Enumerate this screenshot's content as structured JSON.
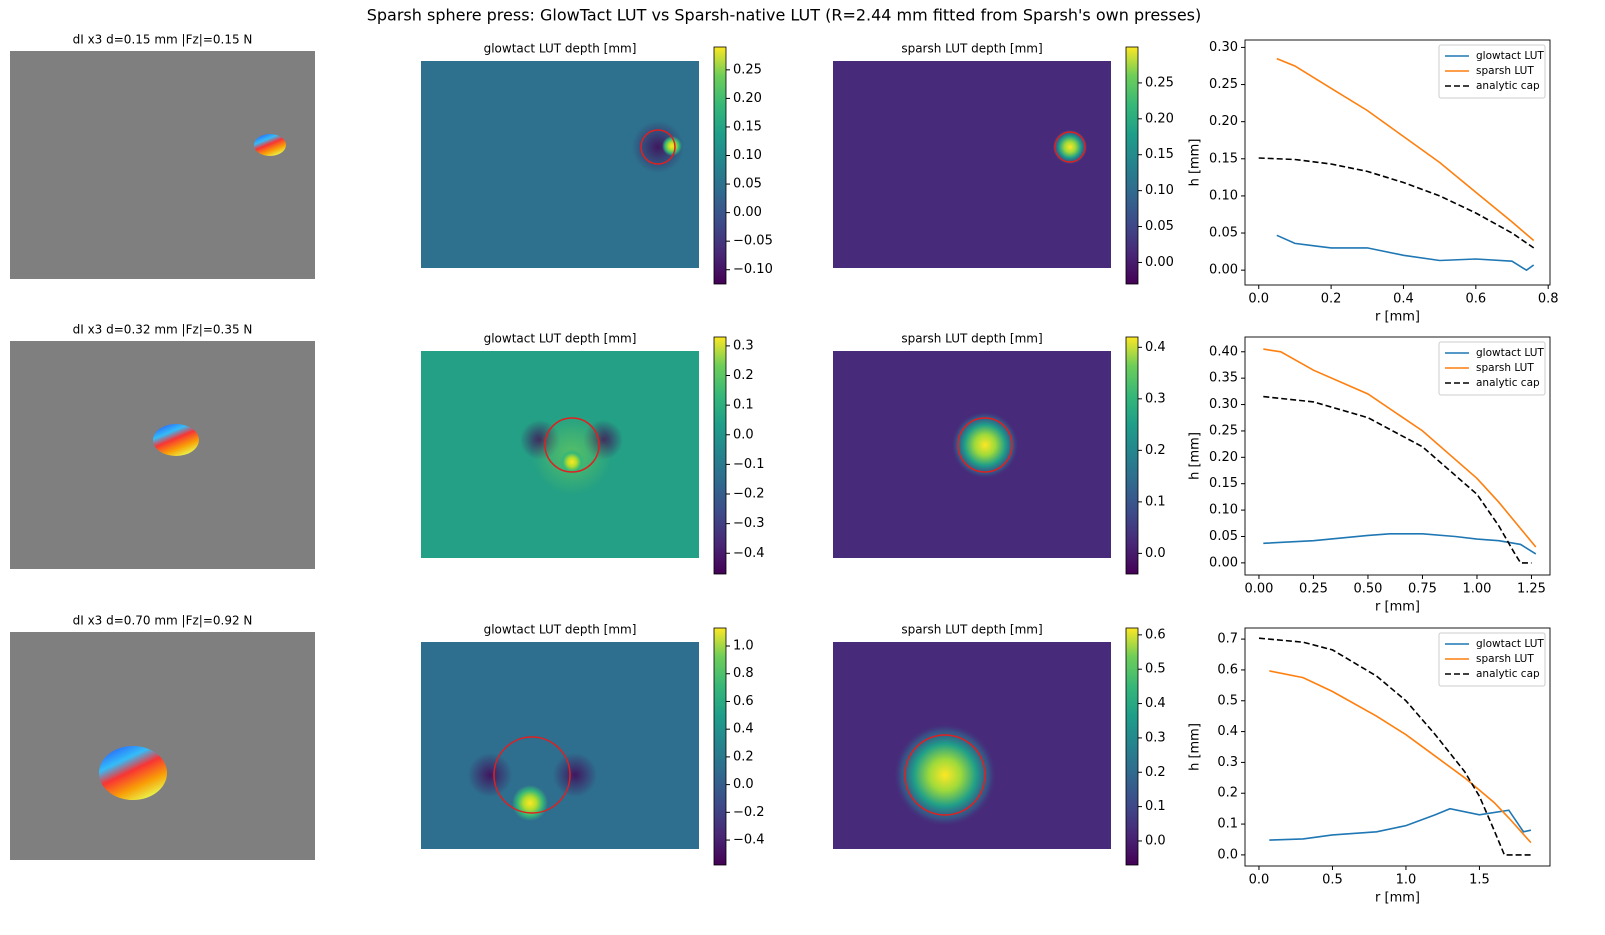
{
  "title": "Sparsh sphere press: GlowTact LUT vs Sparsh-native LUT (R=2.44 mm fitted from Sparsh's own presses)",
  "chart_data": [
    {
      "type": "image",
      "title": "dI x3   d=0.15 mm  |Fz|=0.15 N"
    },
    {
      "type": "heatmap",
      "title": "glowtact LUT depth [mm]",
      "colormap": "viridis",
      "clim": [
        -0.125,
        0.29
      ],
      "cticks": [
        {
          "value": -0.1,
          "label": "−0.10"
        },
        {
          "value": -0.05,
          "label": "−0.05"
        },
        {
          "value": 0,
          "label": "0.00"
        },
        0.05,
        {
          "value": 0.1,
          "label": "0.10"
        },
        0.15,
        {
          "value": 0.2,
          "label": "0.20"
        },
        0.25
      ]
    },
    {
      "type": "heatmap",
      "title": "sparsh LUT depth [mm]",
      "colormap": "viridis",
      "clim": [
        -0.03,
        0.3
      ],
      "cticks": [
        {
          "value": 0,
          "label": "0.00"
        },
        0.05,
        {
          "value": 0.1,
          "label": "0.10"
        },
        0.15,
        {
          "value": 0.2,
          "label": "0.20"
        },
        0.25
      ]
    },
    {
      "type": "line",
      "xlabel": "r [mm]",
      "ylabel": "h [mm]",
      "legend": "upper right",
      "xlim": [
        -0.038,
        0.805
      ],
      "ylim": [
        -0.02,
        0.31
      ],
      "xticks": [
        {
          "value": 0,
          "label": "0.0"
        },
        0.2,
        0.4,
        0.6,
        0.8
      ],
      "yticks": [
        {
          "value": 0,
          "label": "0.00"
        },
        0.05,
        {
          "value": 0.1,
          "label": "0.10"
        },
        0.15,
        {
          "value": 0.2,
          "label": "0.20"
        },
        0.25,
        {
          "value": 0.3,
          "label": "0.30"
        }
      ],
      "series": [
        {
          "name": "glowtact LUT",
          "color": "#1f77b4",
          "dash": false,
          "x": [
            0.05,
            0.1,
            0.15,
            0.2,
            0.3,
            0.4,
            0.5,
            0.6,
            0.7,
            0.74,
            0.76
          ],
          "values": [
            0.047,
            0.036,
            0.033,
            0.03,
            0.03,
            0.02,
            0.013,
            0.015,
            0.012,
            0.0,
            0.007
          ]
        },
        {
          "name": "sparsh LUT",
          "color": "#ff7f0e",
          "dash": false,
          "x": [
            0.05,
            0.1,
            0.2,
            0.3,
            0.4,
            0.5,
            0.6,
            0.7,
            0.76
          ],
          "values": [
            0.285,
            0.275,
            0.245,
            0.215,
            0.18,
            0.145,
            0.105,
            0.065,
            0.04
          ]
        },
        {
          "name": "analytic cap",
          "color": "#000000",
          "dash": true,
          "x": [
            0,
            0.1,
            0.2,
            0.3,
            0.4,
            0.5,
            0.6,
            0.7,
            0.76
          ],
          "values": [
            0.151,
            0.149,
            0.143,
            0.133,
            0.118,
            0.1,
            0.077,
            0.05,
            0.03
          ]
        }
      ]
    },
    {
      "type": "image",
      "title": "dI x3   d=0.32 mm  |Fz|=0.35 N"
    },
    {
      "type": "heatmap",
      "title": "glowtact LUT depth [mm]",
      "colormap": "viridis",
      "clim": [
        -0.47,
        0.33
      ],
      "cticks": [
        {
          "value": -0.4,
          "label": "−0.4"
        },
        {
          "value": -0.3,
          "label": "−0.3"
        },
        {
          "value": -0.2,
          "label": "−0.2"
        },
        {
          "value": -0.1,
          "label": "−0.1"
        },
        {
          "value": 0,
          "label": "0.0"
        },
        0.1,
        0.2,
        0.3
      ]
    },
    {
      "type": "heatmap",
      "title": "sparsh LUT depth [mm]",
      "colormap": "viridis",
      "clim": [
        -0.04,
        0.42
      ],
      "cticks": [
        {
          "value": 0,
          "label": "0.0"
        },
        0.1,
        0.2,
        0.3,
        0.4
      ]
    },
    {
      "type": "line",
      "xlabel": "r [mm]",
      "ylabel": "h [mm]",
      "legend": "upper right",
      "xlim": [
        -0.064,
        1.335
      ],
      "ylim": [
        -0.023,
        0.428
      ],
      "xticks": [
        {
          "value": 0,
          "label": "0.00"
        },
        0.25,
        {
          "value": 0.5,
          "label": "0.50"
        },
        0.75,
        {
          "value": 1,
          "label": "1.00"
        },
        1.25
      ],
      "yticks": [
        {
          "value": 0,
          "label": "0.00"
        },
        0.05,
        {
          "value": 0.1,
          "label": "0.10"
        },
        0.15,
        {
          "value": 0.2,
          "label": "0.20"
        },
        0.25,
        {
          "value": 0.3,
          "label": "0.30"
        },
        0.35,
        {
          "value": 0.4,
          "label": "0.40"
        }
      ],
      "series": [
        {
          "name": "glowtact LUT",
          "color": "#1f77b4",
          "dash": false,
          "x": [
            0.02,
            0.25,
            0.5,
            0.6,
            0.75,
            0.9,
            1.0,
            1.1,
            1.2,
            1.27
          ],
          "values": [
            0.037,
            0.042,
            0.052,
            0.055,
            0.055,
            0.05,
            0.045,
            0.042,
            0.035,
            0.017
          ]
        },
        {
          "name": "sparsh LUT",
          "color": "#ff7f0e",
          "dash": false,
          "x": [
            0.02,
            0.1,
            0.25,
            0.5,
            0.75,
            1.0,
            1.1,
            1.2,
            1.27
          ],
          "values": [
            0.405,
            0.4,
            0.365,
            0.32,
            0.25,
            0.16,
            0.115,
            0.065,
            0.03
          ]
        },
        {
          "name": "analytic cap",
          "color": "#000000",
          "dash": true,
          "x": [
            0.02,
            0.25,
            0.5,
            0.75,
            1.0,
            1.1,
            1.17,
            1.2,
            1.25
          ],
          "values": [
            0.315,
            0.305,
            0.275,
            0.22,
            0.13,
            0.07,
            0.02,
            0.0,
            0.0
          ]
        }
      ]
    },
    {
      "type": "image",
      "title": "dI x3   d=0.70 mm  |Fz|=0.92 N"
    },
    {
      "type": "heatmap",
      "title": "glowtact LUT depth [mm]",
      "colormap": "viridis",
      "clim": [
        -0.58,
        1.13
      ],
      "cticks": [
        {
          "value": -0.4,
          "label": "−0.4"
        },
        {
          "value": -0.2,
          "label": "−0.2"
        },
        {
          "value": 0,
          "label": "0.0"
        },
        0.2,
        0.4,
        0.6,
        0.8,
        {
          "value": 1,
          "label": "1.0"
        }
      ]
    },
    {
      "type": "heatmap",
      "title": "sparsh LUT depth [mm]",
      "colormap": "viridis",
      "clim": [
        -0.07,
        0.62
      ],
      "cticks": [
        {
          "value": 0,
          "label": "0.0"
        },
        0.1,
        0.2,
        0.3,
        0.4,
        0.5,
        0.6
      ]
    },
    {
      "type": "line",
      "xlabel": "r [mm]",
      "ylabel": "h [mm]",
      "legend": "upper right",
      "xlim": [
        -0.095,
        1.98
      ],
      "ylim": [
        -0.036,
        0.736
      ],
      "xticks": [
        {
          "value": 0,
          "label": "0.0"
        },
        0.5,
        {
          "value": 1,
          "label": "1.0"
        },
        1.5
      ],
      "yticks": [
        {
          "value": 0,
          "label": "0.0"
        },
        0.1,
        0.2,
        0.3,
        0.4,
        0.5,
        0.6,
        0.7
      ],
      "series": [
        {
          "name": "glowtact LUT",
          "color": "#1f77b4",
          "dash": false,
          "x": [
            0.07,
            0.3,
            0.5,
            0.8,
            1.0,
            1.2,
            1.3,
            1.5,
            1.7,
            1.8,
            1.85
          ],
          "values": [
            0.048,
            0.052,
            0.065,
            0.075,
            0.095,
            0.13,
            0.15,
            0.13,
            0.145,
            0.075,
            0.08
          ]
        },
        {
          "name": "sparsh LUT",
          "color": "#ff7f0e",
          "dash": false,
          "x": [
            0.07,
            0.3,
            0.5,
            0.8,
            1.0,
            1.2,
            1.4,
            1.6,
            1.7,
            1.85
          ],
          "values": [
            0.597,
            0.575,
            0.53,
            0.45,
            0.39,
            0.32,
            0.25,
            0.17,
            0.12,
            0.04
          ]
        },
        {
          "name": "analytic cap",
          "color": "#000000",
          "dash": true,
          "x": [
            0.0,
            0.3,
            0.5,
            0.8,
            1.0,
            1.2,
            1.4,
            1.5,
            1.6,
            1.67,
            1.85
          ],
          "values": [
            0.703,
            0.69,
            0.665,
            0.58,
            0.5,
            0.39,
            0.27,
            0.19,
            0.08,
            0.0,
            0.0
          ]
        }
      ]
    }
  ]
}
